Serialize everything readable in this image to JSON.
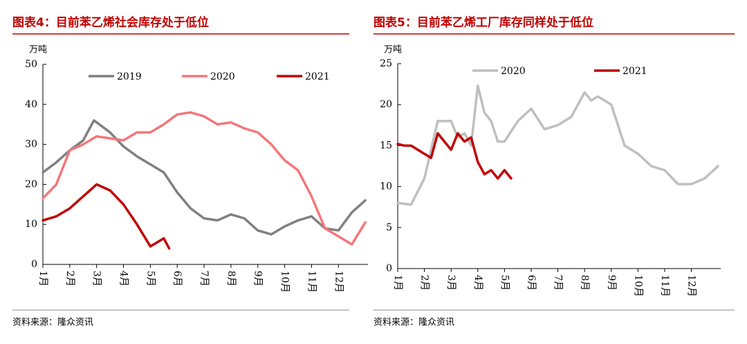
{
  "chart_data": [
    {
      "type": "line",
      "title": "图表4：目前苯乙烯社会库存处于低位",
      "unit": "万吨",
      "source": "资料来源：隆众资讯",
      "xlim": [
        1,
        13.1
      ],
      "ylim": [
        0,
        50
      ],
      "yticks": [
        0,
        10,
        20,
        30,
        40,
        50
      ],
      "xticks": [
        {
          "value": 1,
          "label": "1月"
        },
        {
          "value": 2,
          "label": "2月"
        },
        {
          "value": 3,
          "label": "3月"
        },
        {
          "value": 4,
          "label": "4月"
        },
        {
          "value": 5,
          "label": "5月"
        },
        {
          "value": 6,
          "label": "6月"
        },
        {
          "value": 7,
          "label": "7月"
        },
        {
          "value": 8,
          "label": "8月"
        },
        {
          "value": 9,
          "label": "9月"
        },
        {
          "value": 10,
          "label": "10月"
        },
        {
          "value": 11,
          "label": "11月"
        },
        {
          "value": 12,
          "label": "12月"
        }
      ],
      "series": [
        {
          "name": "2019",
          "color": "#808080",
          "x": [
            1,
            1.5,
            2,
            2.5,
            2.9,
            3,
            3.5,
            4,
            4.5,
            5,
            5.5,
            6,
            6.5,
            7,
            7.5,
            8,
            8.5,
            9,
            9.5,
            10,
            10.5,
            11,
            11.5,
            12,
            12.5,
            13
          ],
          "values": [
            23,
            25.5,
            28.5,
            31,
            36,
            35.5,
            33,
            29.5,
            27,
            25,
            23,
            18,
            14,
            11.5,
            11,
            12.5,
            11.5,
            8.5,
            7.5,
            9.5,
            11,
            12,
            9,
            8.5,
            13,
            16
          ]
        },
        {
          "name": "2020",
          "color": "#f4777a",
          "x": [
            1,
            1.5,
            2,
            2.5,
            3,
            3.5,
            4,
            4.5,
            5,
            5.5,
            6,
            6.5,
            7,
            7.5,
            8,
            8.5,
            9,
            9.5,
            10,
            10.5,
            11,
            11.5,
            12,
            12.5,
            13
          ],
          "values": [
            16.5,
            20,
            28.5,
            30,
            32,
            31.5,
            31,
            33,
            33,
            35,
            37.5,
            38,
            37,
            35,
            35.5,
            34,
            33,
            30,
            26,
            23.5,
            17,
            9,
            7,
            5,
            10.5
          ]
        },
        {
          "name": "2021",
          "color": "#c00000",
          "x": [
            1,
            1.5,
            2,
            2.5,
            3,
            3.5,
            4,
            4.5,
            5,
            5.5,
            5.7
          ],
          "values": [
            11,
            12,
            14,
            17,
            20,
            18.5,
            15,
            10,
            4.5,
            6.5,
            4
          ]
        }
      ]
    },
    {
      "type": "line",
      "title": "图表5：目前苯乙烯工厂库存同样处于低位",
      "unit": "万吨",
      "source": "资料来源：隆众资讯",
      "xlim": [
        1,
        13.1
      ],
      "ylim": [
        0,
        25
      ],
      "yticks": [
        0,
        5,
        10,
        15,
        20,
        25
      ],
      "xticks": [
        {
          "value": 1,
          "label": "1月"
        },
        {
          "value": 2,
          "label": "2月"
        },
        {
          "value": 3,
          "label": "3月"
        },
        {
          "value": 4,
          "label": "4月"
        },
        {
          "value": 5,
          "label": "5月"
        },
        {
          "value": 6,
          "label": "6月"
        },
        {
          "value": 7,
          "label": "7月"
        },
        {
          "value": 8,
          "label": "8月"
        },
        {
          "value": 9,
          "label": "9月"
        },
        {
          "value": 10,
          "label": "10月"
        },
        {
          "value": 11,
          "label": "11月"
        },
        {
          "value": 12,
          "label": "12月"
        }
      ],
      "series": [
        {
          "name": "2020",
          "color": "#bfbfbf",
          "x": [
            1,
            1.5,
            2,
            2.5,
            3,
            3.25,
            3.5,
            3.75,
            4,
            4.25,
            4.5,
            4.75,
            5,
            5.5,
            6,
            6.5,
            7,
            7.5,
            8,
            8.25,
            8.5,
            9,
            9.5,
            10,
            10.5,
            11,
            11.5,
            12,
            12.5,
            13
          ],
          "values": [
            8,
            7.8,
            11,
            18,
            18,
            16,
            16.5,
            15,
            22.3,
            19,
            18,
            15.5,
            15.5,
            18,
            19.5,
            17,
            17.5,
            18.5,
            21.5,
            20.5,
            21,
            20,
            15,
            14,
            12.5,
            12,
            10.3,
            10.3,
            11,
            12.5
          ]
        },
        {
          "name": "2021",
          "color": "#c00000",
          "x": [
            1,
            1.25,
            1.5,
            1.75,
            2,
            2.25,
            2.5,
            2.75,
            3,
            3.25,
            3.5,
            3.75,
            4,
            4.25,
            4.5,
            4.75,
            5,
            5.25
          ],
          "values": [
            15.2,
            15,
            15,
            14.5,
            14,
            13.5,
            16.5,
            15.5,
            14.5,
            16.5,
            15.5,
            16,
            13,
            11.5,
            12,
            11,
            12,
            11
          ]
        }
      ]
    }
  ]
}
